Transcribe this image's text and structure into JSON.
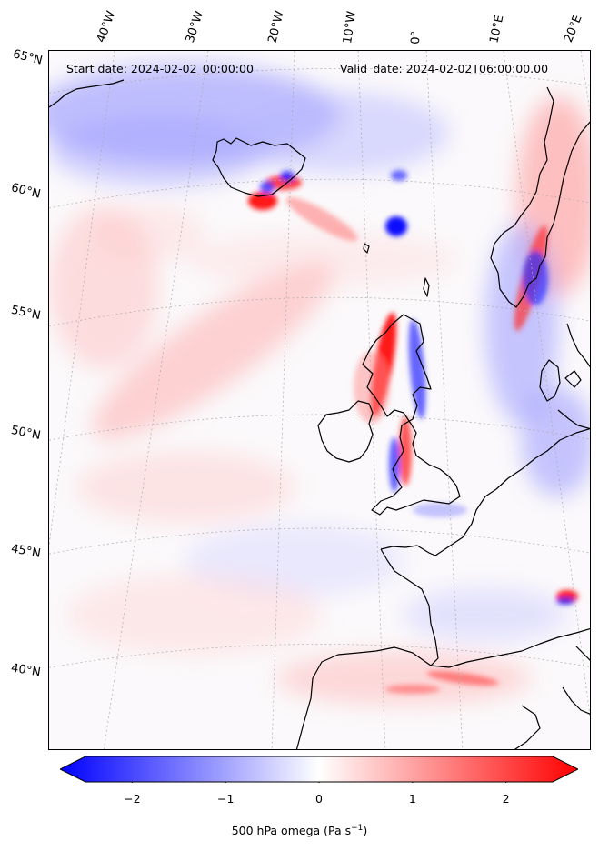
{
  "map": {
    "start_date": "Start date: 2024-02-02_00:00:00",
    "valid_date": "Valid_date: 2024-02-02T06:00:00.00",
    "projection": "polar-stereographic",
    "field_colormap": "bwr",
    "lon_labels": [
      "40°W",
      "30°W",
      "20°W",
      "10°W",
      "0°",
      "10°E",
      "20°E"
    ],
    "lat_labels": [
      "65°N",
      "60°N",
      "55°N",
      "50°N",
      "45°N",
      "40°N"
    ],
    "colors": {
      "positive": "#ff0000",
      "negative": "#0000ff",
      "neutral": "#ffffff",
      "coastline": "#000000"
    }
  },
  "colorbar": {
    "label_text": "500 hPa omega (Pa s",
    "label_sup": "−1",
    "label_close": ")",
    "ticks": [
      "−2",
      "−1",
      "0",
      "1",
      "2"
    ],
    "tick_values": [
      -2,
      -1,
      0,
      1,
      2
    ],
    "range": [
      -2.5,
      2.5
    ],
    "extend": "both"
  }
}
